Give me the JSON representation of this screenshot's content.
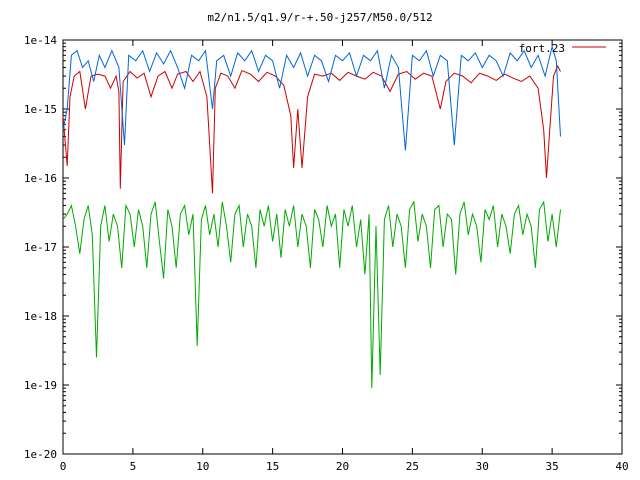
{
  "chart_data": {
    "type": "line",
    "title": "m2/n1.5/q1.9/r-+.50-j257/M50.0/512",
    "xlabel": "",
    "ylabel": "",
    "scale_y": "log",
    "xlim": [
      0,
      40
    ],
    "ylim": [
      1e-20,
      1e-14
    ],
    "x_ticks": [
      0,
      5,
      10,
      15,
      20,
      25,
      30,
      35,
      40
    ],
    "x_tick_labels": [
      "0",
      "5",
      "10",
      "15",
      "20",
      "25",
      "30",
      "35",
      "40"
    ],
    "y_ticks": [
      1e-20,
      1e-19,
      1e-18,
      1e-17,
      1e-16,
      1e-15,
      1e-14
    ],
    "y_tick_labels": [
      "1e-20",
      "1e-19",
      "1e-18",
      "1e-17",
      "1e-16",
      "1e-15",
      "1e-14"
    ],
    "legend": {
      "position": "top-right",
      "entries": [
        "fort.23"
      ]
    },
    "series": [
      {
        "name": "fort.23",
        "color": "#cc0000",
        "points": [
          [
            0,
            8e-16
          ],
          [
            0.3,
            1.5e-16
          ],
          [
            0.5,
            1.5e-15
          ],
          [
            0.8,
            3e-15
          ],
          [
            1.2,
            3.5e-15
          ],
          [
            1.6,
            1e-15
          ],
          [
            2.0,
            3e-15
          ],
          [
            2.5,
            3.2e-15
          ],
          [
            3.0,
            3e-15
          ],
          [
            3.4,
            2e-15
          ],
          [
            3.8,
            3e-15
          ],
          [
            4.0,
            1.8e-15
          ],
          [
            4.1,
            7e-17
          ],
          [
            4.3,
            2.5e-15
          ],
          [
            4.8,
            3.5e-15
          ],
          [
            5.3,
            2.8e-15
          ],
          [
            5.8,
            3.3e-15
          ],
          [
            6.3,
            1.5e-15
          ],
          [
            6.8,
            3e-15
          ],
          [
            7.3,
            3.5e-15
          ],
          [
            7.8,
            2e-15
          ],
          [
            8.2,
            3.2e-15
          ],
          [
            8.8,
            3.5e-15
          ],
          [
            9.3,
            2.5e-15
          ],
          [
            9.8,
            3.5e-15
          ],
          [
            10.3,
            1.5e-15
          ],
          [
            10.7,
            6e-17
          ],
          [
            10.9,
            2e-15
          ],
          [
            11.3,
            3.3e-15
          ],
          [
            11.8,
            3e-15
          ],
          [
            12.3,
            2e-15
          ],
          [
            12.8,
            3.6e-15
          ],
          [
            13.4,
            3.2e-15
          ],
          [
            14.0,
            2.5e-15
          ],
          [
            14.6,
            3.4e-15
          ],
          [
            15.2,
            3e-15
          ],
          [
            15.8,
            2.2e-15
          ],
          [
            16.3,
            8e-16
          ],
          [
            16.5,
            1.4e-16
          ],
          [
            16.8,
            1e-15
          ],
          [
            17.1,
            1.4e-16
          ],
          [
            17.5,
            1.5e-15
          ],
          [
            18.0,
            3.2e-15
          ],
          [
            18.6,
            3e-15
          ],
          [
            19.2,
            3.3e-15
          ],
          [
            19.8,
            2.6e-15
          ],
          [
            20.4,
            3.4e-15
          ],
          [
            21.0,
            3e-15
          ],
          [
            21.6,
            2.7e-15
          ],
          [
            22.2,
            3.4e-15
          ],
          [
            22.8,
            3e-15
          ],
          [
            23.4,
            1.8e-15
          ],
          [
            24.0,
            3.2e-15
          ],
          [
            24.6,
            3.5e-15
          ],
          [
            25.2,
            2.7e-15
          ],
          [
            25.8,
            3.3e-15
          ],
          [
            26.4,
            3e-15
          ],
          [
            27.0,
            1e-15
          ],
          [
            27.4,
            2.5e-15
          ],
          [
            28.0,
            3.3e-15
          ],
          [
            28.6,
            3e-15
          ],
          [
            29.2,
            2.4e-15
          ],
          [
            29.8,
            3.3e-15
          ],
          [
            30.4,
            3e-15
          ],
          [
            31.0,
            2.6e-15
          ],
          [
            31.6,
            3.2e-15
          ],
          [
            32.2,
            2.8e-15
          ],
          [
            32.8,
            2.5e-15
          ],
          [
            33.4,
            3e-15
          ],
          [
            34.0,
            2e-15
          ],
          [
            34.4,
            5e-16
          ],
          [
            34.6,
            1e-16
          ],
          [
            34.8,
            4e-16
          ],
          [
            35.1,
            3e-15
          ],
          [
            35.4,
            4.2e-15
          ],
          [
            35.6,
            3.5e-15
          ]
        ]
      },
      {
        "color": "#0066dd",
        "points": [
          [
            0,
            5e-16
          ],
          [
            0.3,
            1e-15
          ],
          [
            0.6,
            6e-15
          ],
          [
            1.0,
            7e-15
          ],
          [
            1.4,
            4e-15
          ],
          [
            1.8,
            5e-15
          ],
          [
            2.2,
            2.5e-15
          ],
          [
            2.6,
            6e-15
          ],
          [
            3.0,
            4e-15
          ],
          [
            3.5,
            7e-15
          ],
          [
            4.0,
            4e-15
          ],
          [
            4.4,
            3e-16
          ],
          [
            4.7,
            6e-15
          ],
          [
            5.2,
            5e-15
          ],
          [
            5.7,
            7e-15
          ],
          [
            6.2,
            3.5e-15
          ],
          [
            6.7,
            6.5e-15
          ],
          [
            7.2,
            4.5e-15
          ],
          [
            7.7,
            7e-15
          ],
          [
            8.2,
            4e-15
          ],
          [
            8.7,
            2e-15
          ],
          [
            9.2,
            6e-15
          ],
          [
            9.7,
            5e-15
          ],
          [
            10.2,
            7e-15
          ],
          [
            10.7,
            1e-15
          ],
          [
            11.0,
            5e-15
          ],
          [
            11.5,
            6e-15
          ],
          [
            12.0,
            3e-15
          ],
          [
            12.5,
            6.5e-15
          ],
          [
            13.0,
            5e-15
          ],
          [
            13.5,
            7e-15
          ],
          [
            14.0,
            3.5e-15
          ],
          [
            14.5,
            6e-15
          ],
          [
            15.0,
            5e-15
          ],
          [
            15.5,
            2e-15
          ],
          [
            16.0,
            6e-15
          ],
          [
            16.5,
            4e-15
          ],
          [
            17.0,
            6.5e-15
          ],
          [
            17.5,
            3e-15
          ],
          [
            18.0,
            6e-15
          ],
          [
            18.5,
            5e-15
          ],
          [
            19.0,
            2.5e-15
          ],
          [
            19.5,
            6e-15
          ],
          [
            20.0,
            5e-15
          ],
          [
            20.5,
            6.5e-15
          ],
          [
            21.0,
            3e-15
          ],
          [
            21.5,
            6e-15
          ],
          [
            22.0,
            5e-15
          ],
          [
            22.5,
            7e-15
          ],
          [
            23.0,
            2e-15
          ],
          [
            23.5,
            6e-15
          ],
          [
            24.0,
            4e-15
          ],
          [
            24.5,
            2.5e-16
          ],
          [
            25.0,
            6e-15
          ],
          [
            25.5,
            5e-15
          ],
          [
            26.0,
            7e-15
          ],
          [
            26.5,
            3e-15
          ],
          [
            27.0,
            6e-15
          ],
          [
            27.5,
            5e-15
          ],
          [
            28.0,
            3e-16
          ],
          [
            28.5,
            6e-15
          ],
          [
            29.0,
            5e-15
          ],
          [
            29.5,
            6.5e-15
          ],
          [
            30.0,
            4e-15
          ],
          [
            30.5,
            6e-15
          ],
          [
            31.0,
            5e-15
          ],
          [
            31.5,
            3e-15
          ],
          [
            32.0,
            6.5e-15
          ],
          [
            32.5,
            5e-15
          ],
          [
            33.0,
            7e-15
          ],
          [
            33.5,
            4e-15
          ],
          [
            34.0,
            6e-15
          ],
          [
            34.5,
            3e-15
          ],
          [
            35.0,
            8e-15
          ],
          [
            35.3,
            5e-15
          ],
          [
            35.6,
            4e-16
          ]
        ]
      },
      {
        "color": "#00aa00",
        "points": [
          [
            0,
            2.5e-17
          ],
          [
            0.3,
            3e-17
          ],
          [
            0.6,
            4e-17
          ],
          [
            0.9,
            2e-17
          ],
          [
            1.2,
            8e-18
          ],
          [
            1.5,
            2.5e-17
          ],
          [
            1.8,
            4e-17
          ],
          [
            2.1,
            1.5e-17
          ],
          [
            2.4,
            2.5e-19
          ],
          [
            2.7,
            2e-17
          ],
          [
            3.0,
            4e-17
          ],
          [
            3.3,
            1.2e-17
          ],
          [
            3.6,
            3e-17
          ],
          [
            3.9,
            2e-17
          ],
          [
            4.2,
            5e-18
          ],
          [
            4.5,
            4e-17
          ],
          [
            4.8,
            3e-17
          ],
          [
            5.1,
            1e-17
          ],
          [
            5.4,
            3.5e-17
          ],
          [
            5.7,
            2e-17
          ],
          [
            6.0,
            5e-18
          ],
          [
            6.3,
            3e-17
          ],
          [
            6.6,
            4.5e-17
          ],
          [
            6.9,
            1.2e-17
          ],
          [
            7.2,
            3.5e-18
          ],
          [
            7.5,
            3.5e-17
          ],
          [
            7.8,
            2e-17
          ],
          [
            8.1,
            5e-18
          ],
          [
            8.4,
            3e-17
          ],
          [
            8.7,
            4e-17
          ],
          [
            9.0,
            1.5e-17
          ],
          [
            9.3,
            3e-17
          ],
          [
            9.6,
            3.7e-19
          ],
          [
            9.9,
            2.5e-17
          ],
          [
            10.2,
            4e-17
          ],
          [
            10.5,
            1.5e-17
          ],
          [
            10.8,
            3e-17
          ],
          [
            11.1,
            1e-17
          ],
          [
            11.4,
            4.5e-17
          ],
          [
            11.7,
            2e-17
          ],
          [
            12.0,
            6e-18
          ],
          [
            12.3,
            3e-17
          ],
          [
            12.6,
            4e-17
          ],
          [
            12.9,
            1e-17
          ],
          [
            13.2,
            3e-17
          ],
          [
            13.5,
            2e-17
          ],
          [
            13.8,
            5e-18
          ],
          [
            14.1,
            3.5e-17
          ],
          [
            14.4,
            2e-17
          ],
          [
            14.7,
            4e-17
          ],
          [
            15.0,
            1.2e-17
          ],
          [
            15.3,
            3e-17
          ],
          [
            15.6,
            7e-18
          ],
          [
            15.9,
            3.5e-17
          ],
          [
            16.2,
            2e-17
          ],
          [
            16.5,
            4e-17
          ],
          [
            16.8,
            1e-17
          ],
          [
            17.1,
            3e-17
          ],
          [
            17.4,
            2e-17
          ],
          [
            17.7,
            5e-18
          ],
          [
            18.0,
            3.5e-17
          ],
          [
            18.3,
            2.5e-17
          ],
          [
            18.6,
            1e-17
          ],
          [
            18.9,
            4e-17
          ],
          [
            19.2,
            2e-17
          ],
          [
            19.5,
            3e-17
          ],
          [
            19.8,
            5e-18
          ],
          [
            20.1,
            3.5e-17
          ],
          [
            20.4,
            2e-17
          ],
          [
            20.7,
            4e-17
          ],
          [
            21.0,
            1e-17
          ],
          [
            21.3,
            2.5e-17
          ],
          [
            21.6,
            4e-18
          ],
          [
            21.9,
            3e-17
          ],
          [
            22.1,
            9e-20
          ],
          [
            22.4,
            2e-17
          ],
          [
            22.7,
            1.4e-19
          ],
          [
            23.0,
            2.5e-17
          ],
          [
            23.3,
            4e-17
          ],
          [
            23.6,
            1e-17
          ],
          [
            23.9,
            3e-17
          ],
          [
            24.2,
            2e-17
          ],
          [
            24.5,
            5e-18
          ],
          [
            24.8,
            3.5e-17
          ],
          [
            25.1,
            4.5e-17
          ],
          [
            25.4,
            1.2e-17
          ],
          [
            25.7,
            3e-17
          ],
          [
            26.0,
            2e-17
          ],
          [
            26.3,
            5e-18
          ],
          [
            26.6,
            3.5e-17
          ],
          [
            26.9,
            4e-17
          ],
          [
            27.2,
            1e-17
          ],
          [
            27.5,
            3e-17
          ],
          [
            27.8,
            2.5e-17
          ],
          [
            28.1,
            4e-18
          ],
          [
            28.4,
            3e-17
          ],
          [
            28.7,
            4.5e-17
          ],
          [
            29.0,
            1.5e-17
          ],
          [
            29.3,
            3e-17
          ],
          [
            29.6,
            2e-17
          ],
          [
            29.9,
            6e-18
          ],
          [
            30.2,
            3.5e-17
          ],
          [
            30.5,
            2.5e-17
          ],
          [
            30.8,
            4e-17
          ],
          [
            31.1,
            1e-17
          ],
          [
            31.4,
            3e-17
          ],
          [
            31.7,
            2e-17
          ],
          [
            32.0,
            8e-18
          ],
          [
            32.3,
            3e-17
          ],
          [
            32.6,
            4e-17
          ],
          [
            32.9,
            1.5e-17
          ],
          [
            33.2,
            3e-17
          ],
          [
            33.5,
            2e-17
          ],
          [
            33.8,
            5e-18
          ],
          [
            34.1,
            3.5e-17
          ],
          [
            34.4,
            4.5e-17
          ],
          [
            34.7,
            1.2e-17
          ],
          [
            35.0,
            3e-17
          ],
          [
            35.3,
            1e-17
          ],
          [
            35.6,
            3.5e-17
          ]
        ]
      }
    ]
  }
}
